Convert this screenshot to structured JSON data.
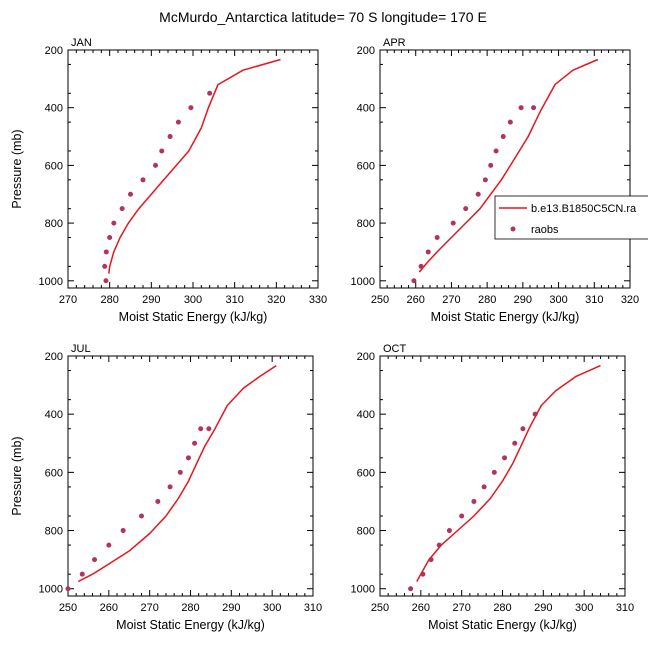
{
  "title": "McMurdo_Antarctica  latitude= 70 S longitude= 170 E",
  "colors": {
    "model_line": "#e8141c",
    "raobs_marker": "#b0345c",
    "axis": "#000000",
    "background": "#ffffff"
  },
  "legend": {
    "placement": "right of APR panel",
    "items": [
      {
        "label": "b.e13.B1850C5CN.ra",
        "style": "line",
        "color": "#e8141c"
      },
      {
        "label": "raobs",
        "style": "marker",
        "color": "#b0345c"
      }
    ]
  },
  "chart_data": [
    {
      "type": "line",
      "panel": "JAN",
      "xlabel": "Moist Static Energy (kJ/kg)",
      "ylabel": "Pressure (mb)",
      "xlim": [
        270,
        330
      ],
      "xticks": [
        270,
        280,
        290,
        300,
        310,
        320,
        330
      ],
      "ylim": [
        1025,
        200
      ],
      "yticks": [
        200,
        400,
        600,
        800,
        1000
      ],
      "series": [
        {
          "name": "b.e13.B1850C5CN.ra",
          "kind": "line",
          "x": [
            279.8,
            280,
            281,
            282.5,
            284.5,
            287,
            290,
            293,
            296,
            299,
            302,
            303.7,
            306,
            312,
            321
          ],
          "y": [
            975,
            950,
            900,
            850,
            800,
            750,
            700,
            650,
            600,
            550,
            470,
            400,
            320,
            270,
            233
          ]
        },
        {
          "name": "raobs",
          "kind": "scatter",
          "x": [
            279.1,
            278.8,
            279.2,
            280,
            281,
            283,
            285,
            288,
            291,
            292.5,
            294.5,
            296.5,
            299.5,
            304
          ],
          "y": [
            1000,
            950,
            900,
            850,
            800,
            750,
            700,
            650,
            600,
            550,
            500,
            450,
            400,
            350
          ]
        }
      ]
    },
    {
      "type": "line",
      "panel": "APR",
      "xlabel": "Moist Static Energy (kJ/kg)",
      "ylabel": "",
      "xlim": [
        250,
        320
      ],
      "xticks": [
        250,
        260,
        270,
        280,
        290,
        300,
        310,
        320
      ],
      "ylim": [
        1025,
        200
      ],
      "yticks": [
        200,
        400,
        600,
        800,
        1000
      ],
      "series": [
        {
          "name": "b.e13.B1850C5CN.ra",
          "kind": "line",
          "x": [
            261,
            263,
            266,
            270,
            274,
            278,
            281,
            284,
            286.5,
            289,
            291.5,
            295,
            299,
            304,
            311
          ],
          "y": [
            970,
            940,
            900,
            850,
            800,
            750,
            700,
            650,
            600,
            550,
            500,
            410,
            320,
            270,
            233
          ]
        },
        {
          "name": "raobs",
          "kind": "scatter",
          "x": [
            259.5,
            261.5,
            263.5,
            266,
            270.5,
            274,
            277.5,
            279.5,
            281,
            282.5,
            284.5,
            286.5,
            289.5,
            293
          ],
          "y": [
            1000,
            950,
            900,
            850,
            800,
            750,
            700,
            650,
            600,
            550,
            500,
            450,
            400,
            400
          ]
        }
      ]
    },
    {
      "type": "line",
      "panel": "JUL",
      "xlabel": "Moist Static Energy (kJ/kg)",
      "ylabel": "Pressure (mb)",
      "xlim": [
        250,
        310
      ],
      "xticks": [
        250,
        260,
        270,
        280,
        290,
        300,
        310
      ],
      "ylim": [
        1025,
        200
      ],
      "yticks": [
        200,
        400,
        600,
        800,
        1000
      ],
      "series": [
        {
          "name": "b.e13.B1850C5CN.ra",
          "kind": "line",
          "x": [
            252.5,
            256,
            260,
            265,
            270,
            274,
            277,
            279.5,
            281.5,
            283.5,
            286,
            289,
            293,
            297,
            301
          ],
          "y": [
            975,
            950,
            915,
            870,
            810,
            750,
            690,
            630,
            570,
            510,
            450,
            370,
            310,
            270,
            233
          ]
        },
        {
          "name": "raobs",
          "kind": "scatter",
          "x": [
            250,
            253.5,
            256.5,
            260,
            263.5,
            268,
            272,
            275,
            277.5,
            279.5,
            281,
            282.5,
            284.5
          ],
          "y": [
            1000,
            950,
            900,
            850,
            800,
            750,
            700,
            650,
            600,
            550,
            500,
            450,
            450
          ]
        }
      ]
    },
    {
      "type": "line",
      "panel": "OCT",
      "xlabel": "Moist Static Energy (kJ/kg)",
      "ylabel": "",
      "xlim": [
        250,
        310
      ],
      "xticks": [
        250,
        260,
        270,
        280,
        290,
        300,
        310
      ],
      "ylim": [
        1025,
        200
      ],
      "yticks": [
        200,
        400,
        600,
        800,
        1000
      ],
      "series": [
        {
          "name": "b.e13.B1850C5CN.ra",
          "kind": "line",
          "x": [
            259,
            260,
            262,
            265,
            269,
            273,
            277,
            280,
            282.5,
            284.5,
            286.5,
            289.5,
            293,
            298,
            304
          ],
          "y": [
            975,
            950,
            900,
            850,
            800,
            750,
            690,
            630,
            570,
            510,
            450,
            370,
            320,
            270,
            233
          ]
        },
        {
          "name": "raobs",
          "kind": "scatter",
          "x": [
            257.5,
            260.5,
            262.5,
            264.5,
            267,
            270,
            273,
            275.5,
            278,
            280.5,
            283,
            285,
            288
          ],
          "y": [
            1000,
            950,
            900,
            850,
            800,
            750,
            700,
            650,
            600,
            550,
            500,
            450,
            400
          ]
        }
      ]
    }
  ]
}
